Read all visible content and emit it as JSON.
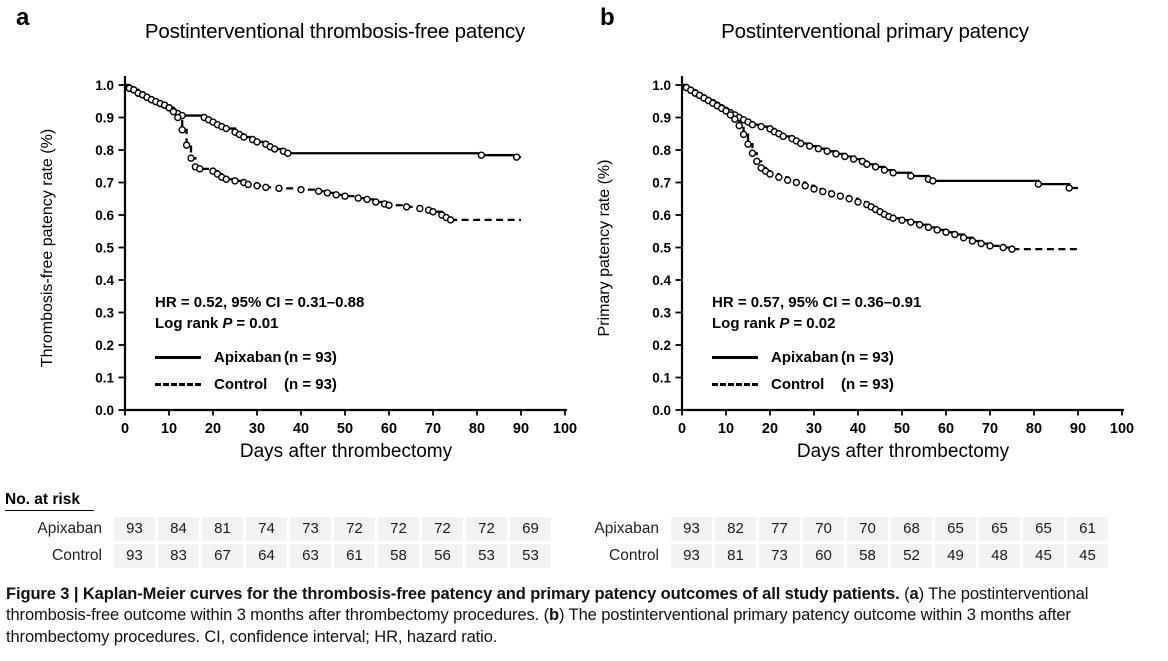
{
  "panels": [
    {
      "letter": "a",
      "title": "Postinterventional thrombosis-free patency",
      "hr_text": "HR = 0.52, 95%  CI = 0.31–0.88",
      "logrank_label": "Log rank",
      "p_symbol": "P",
      "p_value": "= 0.01",
      "legend": [
        {
          "name": "Apixaban",
          "n": "(n = 93)",
          "style": "solid"
        },
        {
          "name": "Control",
          "n": "(n = 93)",
          "style": "dashed"
        }
      ]
    },
    {
      "letter": "b",
      "title": "Postinterventional primary patency",
      "hr_text": "HR = 0.57, 95% CI = 0.36–0.91",
      "logrank_label": "Log rank",
      "p_symbol": "P",
      "p_value": "= 0.02",
      "legend": [
        {
          "name": "Apixaban",
          "n": "(n = 93)",
          "style": "solid"
        },
        {
          "name": "Control",
          "n": "(n = 93)",
          "style": "dashed"
        }
      ]
    }
  ],
  "chart_data": [
    {
      "type": "line",
      "subtype": "kaplan-meier-step",
      "title": "Postinterventional thrombosis-free patency",
      "xlabel": "Days after thrombectomy",
      "ylabel": "Thrombosis-free patency rate (%)",
      "xlim": [
        0,
        100
      ],
      "ylim": [
        0.0,
        1.0
      ],
      "x_data_max": 90,
      "xticks": [
        0,
        10,
        20,
        30,
        40,
        50,
        60,
        70,
        80,
        90,
        100
      ],
      "yticks": [
        "1.0",
        "0.9",
        "0.8",
        "0.7",
        "0.6",
        "0.5",
        "0.4",
        "0.3",
        "0.2",
        "0.1",
        "0.0"
      ],
      "grid": false,
      "legend_position": "lower-left",
      "series": [
        {
          "name": "Apixaban (n = 93)",
          "line": "solid",
          "values": [
            [
              0,
              1.0
            ],
            [
              1,
              0.99
            ],
            [
              2,
              0.985
            ],
            [
              3,
              0.975
            ],
            [
              4,
              0.97
            ],
            [
              5,
              0.962
            ],
            [
              6,
              0.955
            ],
            [
              7,
              0.949
            ],
            [
              8,
              0.943
            ],
            [
              9,
              0.938
            ],
            [
              10,
              0.93
            ],
            [
              11,
              0.92
            ],
            [
              12,
              0.912
            ],
            [
              13,
              0.906
            ],
            [
              18,
              0.9
            ],
            [
              19,
              0.893
            ],
            [
              20,
              0.886
            ],
            [
              21,
              0.878
            ],
            [
              22,
              0.872
            ],
            [
              23,
              0.866
            ],
            [
              25,
              0.855
            ],
            [
              26,
              0.848
            ],
            [
              27,
              0.84
            ],
            [
              29,
              0.832
            ],
            [
              30,
              0.825
            ],
            [
              32,
              0.818
            ],
            [
              33,
              0.81
            ],
            [
              34,
              0.803
            ],
            [
              36,
              0.796
            ],
            [
              37,
              0.79
            ],
            [
              81,
              0.784
            ],
            [
              89,
              0.778
            ]
          ]
        },
        {
          "name": "Control (n = 93)",
          "line": "dashed",
          "values": [
            [
              0,
              1.0
            ],
            [
              1,
              0.99
            ],
            [
              2,
              0.985
            ],
            [
              3,
              0.975
            ],
            [
              4,
              0.97
            ],
            [
              5,
              0.962
            ],
            [
              6,
              0.955
            ],
            [
              7,
              0.949
            ],
            [
              8,
              0.943
            ],
            [
              9,
              0.938
            ],
            [
              10,
              0.93
            ],
            [
              11,
              0.918
            ],
            [
              12,
              0.9
            ],
            [
              13,
              0.862
            ],
            [
              14,
              0.815
            ],
            [
              15,
              0.775
            ],
            [
              16,
              0.748
            ],
            [
              17,
              0.742
            ],
            [
              20,
              0.735
            ],
            [
              21,
              0.726
            ],
            [
              22,
              0.716
            ],
            [
              23,
              0.71
            ],
            [
              25,
              0.705
            ],
            [
              27,
              0.7
            ],
            [
              28,
              0.694
            ],
            [
              30,
              0.69
            ],
            [
              32,
              0.685
            ],
            [
              35,
              0.682
            ],
            [
              40,
              0.678
            ],
            [
              44,
              0.673
            ],
            [
              46,
              0.668
            ],
            [
              48,
              0.662
            ],
            [
              50,
              0.658
            ],
            [
              53,
              0.652
            ],
            [
              55,
              0.648
            ],
            [
              57,
              0.64
            ],
            [
              59,
              0.634
            ],
            [
              60,
              0.63
            ],
            [
              64,
              0.625
            ],
            [
              67,
              0.62
            ],
            [
              69,
              0.615
            ],
            [
              70,
              0.61
            ],
            [
              72,
              0.6
            ],
            [
              73,
              0.592
            ],
            [
              74,
              0.585
            ]
          ]
        }
      ]
    },
    {
      "type": "line",
      "subtype": "kaplan-meier-step",
      "title": "Postinterventional primary patency",
      "xlabel": "Days after thrombectomy",
      "ylabel": "Primary patency rate (%)",
      "xlim": [
        0,
        100
      ],
      "ylim": [
        0.0,
        1.0
      ],
      "x_data_max": 90,
      "xticks": [
        0,
        10,
        20,
        30,
        40,
        50,
        60,
        70,
        80,
        90,
        100
      ],
      "yticks": [
        "1.0",
        "0.9",
        "0.8",
        "0.7",
        "0.6",
        "0.5",
        "0.4",
        "0.3",
        "0.2",
        "0.1",
        "0.0"
      ],
      "grid": false,
      "legend_position": "lower-left",
      "series": [
        {
          "name": "Apixaban (n = 93)",
          "line": "solid",
          "values": [
            [
              0,
              1.0
            ],
            [
              1,
              0.992
            ],
            [
              2,
              0.984
            ],
            [
              3,
              0.975
            ],
            [
              4,
              0.968
            ],
            [
              5,
              0.96
            ],
            [
              6,
              0.953
            ],
            [
              7,
              0.946
            ],
            [
              8,
              0.938
            ],
            [
              9,
              0.93
            ],
            [
              10,
              0.922
            ],
            [
              11,
              0.915
            ],
            [
              12,
              0.908
            ],
            [
              13,
              0.9
            ],
            [
              14,
              0.893
            ],
            [
              15,
              0.886
            ],
            [
              16,
              0.878
            ],
            [
              18,
              0.872
            ],
            [
              20,
              0.865
            ],
            [
              21,
              0.856
            ],
            [
              22,
              0.85
            ],
            [
              23,
              0.842
            ],
            [
              25,
              0.835
            ],
            [
              26,
              0.828
            ],
            [
              27,
              0.82
            ],
            [
              29,
              0.812
            ],
            [
              31,
              0.804
            ],
            [
              33,
              0.796
            ],
            [
              35,
              0.788
            ],
            [
              37,
              0.78
            ],
            [
              39,
              0.772
            ],
            [
              41,
              0.765
            ],
            [
              42,
              0.756
            ],
            [
              44,
              0.748
            ],
            [
              46,
              0.738
            ],
            [
              48,
              0.73
            ],
            [
              52,
              0.72
            ],
            [
              56,
              0.71
            ],
            [
              57,
              0.705
            ],
            [
              81,
              0.695
            ],
            [
              88,
              0.683
            ]
          ]
        },
        {
          "name": "Control (n = 93)",
          "line": "dashed",
          "values": [
            [
              0,
              1.0
            ],
            [
              1,
              0.992
            ],
            [
              2,
              0.984
            ],
            [
              3,
              0.975
            ],
            [
              4,
              0.968
            ],
            [
              5,
              0.96
            ],
            [
              6,
              0.952
            ],
            [
              7,
              0.944
            ],
            [
              8,
              0.936
            ],
            [
              9,
              0.928
            ],
            [
              10,
              0.92
            ],
            [
              11,
              0.908
            ],
            [
              12,
              0.895
            ],
            [
              13,
              0.875
            ],
            [
              14,
              0.848
            ],
            [
              15,
              0.818
            ],
            [
              16,
              0.79
            ],
            [
              17,
              0.765
            ],
            [
              18,
              0.745
            ],
            [
              19,
              0.735
            ],
            [
              20,
              0.726
            ],
            [
              22,
              0.716
            ],
            [
              24,
              0.707
            ],
            [
              26,
              0.7
            ],
            [
              28,
              0.69
            ],
            [
              30,
              0.68
            ],
            [
              32,
              0.672
            ],
            [
              34,
              0.665
            ],
            [
              36,
              0.658
            ],
            [
              38,
              0.65
            ],
            [
              40,
              0.64
            ],
            [
              42,
              0.632
            ],
            [
              43,
              0.625
            ],
            [
              44,
              0.617
            ],
            [
              45,
              0.61
            ],
            [
              46,
              0.602
            ],
            [
              47,
              0.595
            ],
            [
              48,
              0.59
            ],
            [
              50,
              0.584
            ],
            [
              52,
              0.578
            ],
            [
              54,
              0.57
            ],
            [
              56,
              0.562
            ],
            [
              58,
              0.554
            ],
            [
              60,
              0.547
            ],
            [
              62,
              0.54
            ],
            [
              64,
              0.53
            ],
            [
              66,
              0.52
            ],
            [
              68,
              0.512
            ],
            [
              70,
              0.505
            ],
            [
              73,
              0.5
            ],
            [
              75,
              0.495
            ]
          ]
        }
      ]
    }
  ],
  "risk_table": {
    "heading": "No. at risk",
    "timepoints": [
      0,
      10,
      20,
      30,
      40,
      50,
      60,
      70,
      80,
      90
    ],
    "panels": [
      {
        "rows": [
          {
            "label": "Apixaban",
            "values": [
              93,
              84,
              81,
              74,
              73,
              72,
              72,
              72,
              72,
              69
            ]
          },
          {
            "label": "Control",
            "values": [
              93,
              83,
              67,
              64,
              63,
              61,
              58,
              56,
              53,
              53
            ]
          }
        ]
      },
      {
        "rows": [
          {
            "label": "Apixaban",
            "values": [
              93,
              82,
              77,
              70,
              70,
              68,
              65,
              65,
              65,
              61
            ]
          },
          {
            "label": "Control",
            "values": [
              93,
              81,
              73,
              60,
              58,
              52,
              49,
              48,
              45,
              45
            ]
          }
        ]
      }
    ]
  },
  "caption": {
    "segments": [
      {
        "text": "Figure 3 | Kaplan-Meier curves for the thrombosis-free patency and primary patency outcomes of all study patients.",
        "bold": true
      },
      {
        "text": " (",
        "bold": false
      },
      {
        "text": "a",
        "bold": true
      },
      {
        "text": ") The postinterventional thrombosis-free outcome within 3 months after thrombectomy procedures. (",
        "bold": false
      },
      {
        "text": "b",
        "bold": true
      },
      {
        "text": ") The postinterventional primary patency outcome within 3 months after thrombectomy procedures. CI, confidence interval; HR, hazard ratio.",
        "bold": false
      }
    ]
  },
  "colors": {
    "curve": "#000000",
    "risk_cell_bg": "#f2f2f2",
    "text": "#111111",
    "background": "#ffffff"
  }
}
